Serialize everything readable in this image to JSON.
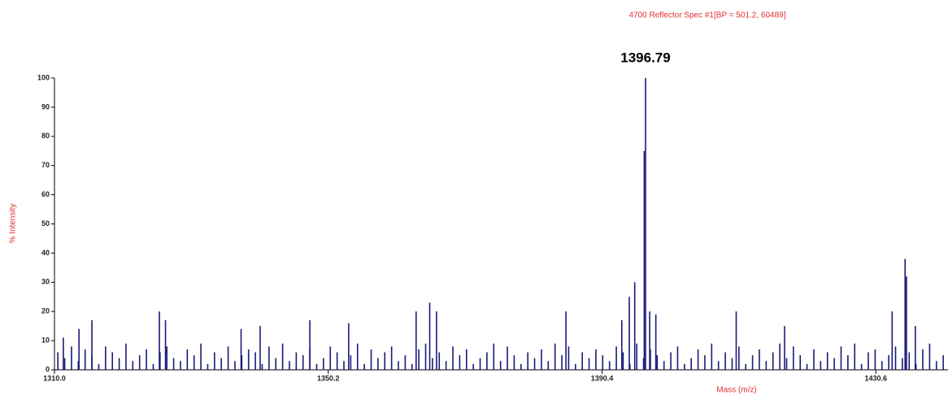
{
  "chart_data": {
    "type": "stem",
    "title": "4700 Reflector Spec #1[BP = 501.2, 60489]",
    "annotation": "1396.79",
    "y_label": "% Intensity",
    "x_label": "Mass (m/z)",
    "color": "#1a1a7a",
    "xlim": [
      1310.0,
      1441.2
    ],
    "xticks": [
      {
        "value": 1310.0,
        "label": "1310.0"
      },
      1350.2,
      1390.4,
      1430.6
    ],
    "ylim": [
      0,
      100
    ],
    "yticks": [
      0,
      10,
      20,
      30,
      40,
      50,
      60,
      70,
      80,
      90,
      100
    ],
    "x": [
      1310.5,
      1311.5,
      1312.5,
      1313.5,
      1314.5,
      1315.5,
      1316.5,
      1317.5,
      1318.5,
      1319.5,
      1320.5,
      1321.5,
      1322.5,
      1323.5,
      1324.5,
      1325.5,
      1326.5,
      1327.5,
      1328.5,
      1329.5,
      1330.5,
      1331.5,
      1332.5,
      1333.5,
      1334.5,
      1335.5,
      1336.5,
      1337.5,
      1338.5,
      1339.5,
      1340.5,
      1341.5,
      1342.5,
      1343.5,
      1344.5,
      1345.5,
      1346.5,
      1347.5,
      1348.5,
      1349.5,
      1350.5,
      1351.5,
      1352.5,
      1353.5,
      1354.5,
      1355.5,
      1356.5,
      1357.5,
      1358.5,
      1359.5,
      1360.5,
      1361.5,
      1362.5,
      1363.5,
      1364.5,
      1365.5,
      1366.5,
      1367.5,
      1368.5,
      1369.5,
      1370.5,
      1371.5,
      1372.5,
      1373.5,
      1374.5,
      1375.5,
      1376.5,
      1377.5,
      1378.5,
      1379.5,
      1380.5,
      1381.5,
      1382.5,
      1383.5,
      1384.5,
      1385.5,
      1386.5,
      1387.5,
      1388.5,
      1389.5,
      1390.5,
      1391.5,
      1392.5,
      1393.5,
      1394.5,
      1395.5,
      1396.5,
      1397.5,
      1398.5,
      1399.5,
      1400.5,
      1401.5,
      1402.5,
      1403.5,
      1404.5,
      1405.5,
      1406.5,
      1407.5,
      1408.5,
      1409.5,
      1410.5,
      1411.5,
      1412.5,
      1413.5,
      1414.5,
      1415.5,
      1416.5,
      1417.5,
      1418.5,
      1419.5,
      1420.5,
      1421.5,
      1422.5,
      1423.5,
      1424.5,
      1425.5,
      1426.5,
      1427.5,
      1428.5,
      1429.5,
      1430.5,
      1431.5,
      1432.5,
      1433.5,
      1434.5,
      1435.5,
      1436.5,
      1437.5,
      1438.5,
      1439.5,
      1440.5,
      1311.3,
      1313.6,
      1315.5,
      1325.4,
      1326.3,
      1337.4,
      1340.2,
      1347.5,
      1353.2,
      1363.1,
      1365.1,
      1366.1,
      1385.1,
      1393.3,
      1394.4,
      1395.2,
      1396.6,
      1396.79,
      1397.4,
      1398.3,
      1410.1,
      1417.2,
      1433.0,
      1434.9,
      1435.1,
      1436.4
    ],
    "values": [
      6,
      4,
      8,
      3,
      7,
      5,
      2,
      8,
      6,
      4,
      9,
      3,
      5,
      7,
      2,
      6,
      8,
      4,
      3,
      7,
      5,
      9,
      2,
      6,
      4,
      8,
      3,
      5,
      7,
      6,
      2,
      8,
      4,
      9,
      3,
      6,
      5,
      7,
      2,
      4,
      8,
      6,
      3,
      5,
      9,
      2,
      7,
      4,
      6,
      8,
      3,
      5,
      2,
      7,
      9,
      4,
      6,
      3,
      8,
      5,
      7,
      2,
      4,
      6,
      9,
      3,
      8,
      5,
      2,
      6,
      4,
      7,
      3,
      9,
      5,
      8,
      2,
      6,
      4,
      7,
      5,
      3,
      8,
      6,
      2,
      9,
      4,
      7,
      5,
      3,
      6,
      8,
      2,
      4,
      7,
      5,
      9,
      3,
      6,
      4,
      8,
      2,
      5,
      7,
      3,
      6,
      9,
      4,
      8,
      5,
      2,
      7,
      3,
      6,
      4,
      8,
      5,
      9,
      2,
      6,
      7,
      3,
      5,
      8,
      4,
      6,
      2,
      7,
      9,
      3,
      5,
      11,
      14,
      17,
      20,
      17,
      14,
      15,
      17,
      16,
      20,
      23,
      20,
      20,
      17,
      25,
      30,
      75,
      100,
      20,
      19,
      20,
      15,
      20,
      38,
      32,
      15
    ]
  }
}
